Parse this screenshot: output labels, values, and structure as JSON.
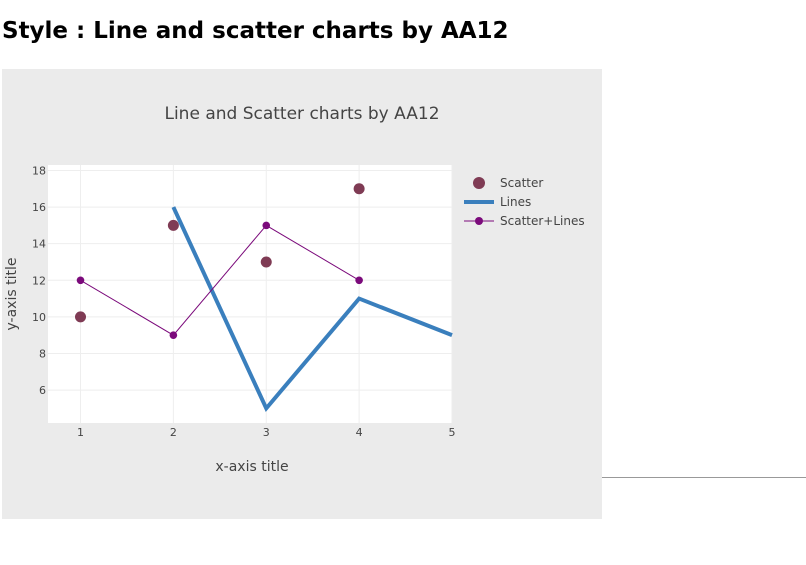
{
  "page": {
    "heading": "Style : Line and scatter charts by AA12"
  },
  "colors": {
    "scatter": "#7f3b54",
    "lines": "#3a7fbd",
    "scatter_lines": "#7b0a7b",
    "paper_bg": "#ebebeb",
    "plot_bg": "#ffffff",
    "grid": "#eeeeee"
  },
  "chart_data": {
    "type": "scatter",
    "title": "Line and Scatter charts by AA12",
    "xlabel": "x-axis title",
    "ylabel": "y-axis title",
    "xlim": [
      0.65,
      5
    ],
    "ylim": [
      4.2,
      18.3
    ],
    "x_ticks": [
      1,
      2,
      3,
      4,
      5
    ],
    "y_ticks": [
      6,
      8,
      10,
      12,
      14,
      16,
      18
    ],
    "grid": true,
    "legend": "top-right, outside plot",
    "series": [
      {
        "name": "Scatter",
        "mode": "markers",
        "x": [
          1,
          2,
          3,
          4
        ],
        "y": [
          10,
          15,
          13,
          17
        ]
      },
      {
        "name": "Lines",
        "mode": "lines",
        "x": [
          2,
          3,
          4,
          5
        ],
        "y": [
          16,
          5,
          11,
          9
        ]
      },
      {
        "name": "Scatter+Lines",
        "mode": "lines+markers",
        "x": [
          1,
          2,
          3,
          4
        ],
        "y": [
          12,
          9,
          15,
          12
        ]
      }
    ]
  }
}
